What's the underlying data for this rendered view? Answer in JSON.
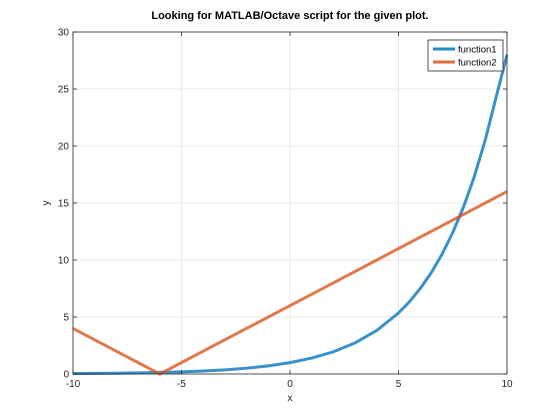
{
  "chart_data": {
    "type": "line",
    "title": "Looking for MATLAB/Octave script for the given plot.",
    "xlabel": "x",
    "ylabel": "y",
    "xlim": [
      -10,
      10
    ],
    "ylim": [
      0,
      30
    ],
    "xticks": [
      -10,
      -5,
      0,
      5,
      10
    ],
    "yticks": [
      0,
      5,
      10,
      15,
      20,
      25,
      30
    ],
    "grid": true,
    "legend_position": "top-right",
    "series": [
      {
        "name": "function1",
        "color": "#0072BD",
        "x": [
          -10,
          -9,
          -8,
          -7,
          -6,
          -5,
          -4,
          -3,
          -2,
          -1,
          0,
          1,
          2,
          3,
          4,
          5,
          5.5,
          6,
          6.5,
          7,
          7.5,
          8,
          8.5,
          9,
          9.5,
          10
        ],
        "y": [
          0.036,
          0.05,
          0.07,
          0.1,
          0.14,
          0.19,
          0.26,
          0.36,
          0.51,
          0.71,
          1.0,
          1.4,
          1.95,
          2.73,
          3.82,
          5.35,
          6.33,
          7.49,
          8.86,
          10.48,
          12.4,
          14.67,
          17.36,
          20.54,
          24.3,
          28.0
        ]
      },
      {
        "name": "function2",
        "color": "#D95319",
        "x": [
          -10,
          -6,
          10
        ],
        "y": [
          4,
          0,
          16
        ]
      }
    ]
  }
}
